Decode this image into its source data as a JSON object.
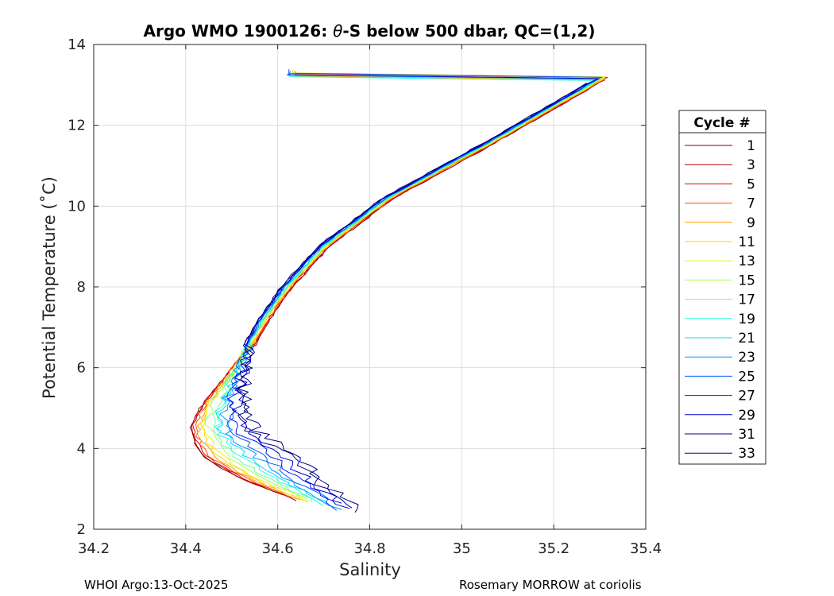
{
  "chart_data": {
    "type": "line",
    "title_prefix": "Argo WMO 1900126: ",
    "title_theta": "θ",
    "title_suffix": "-S below 500 dbar,  QC=(1,2)",
    "xlabel": "Salinity",
    "ylabel": "Potential Temperature (˚C)",
    "xlim": [
      34.2,
      35.4
    ],
    "ylim": [
      2,
      14
    ],
    "xticks": [
      "34.2",
      "34.4",
      "34.6",
      "34.8",
      "35",
      "35.2",
      "35.4"
    ],
    "yticks": [
      "2",
      "4",
      "6",
      "8",
      "10",
      "12",
      "14"
    ],
    "grid": true,
    "legend_title": "Cycle #",
    "legend_placement": "right",
    "legend": [
      "1",
      "3",
      "5",
      "7",
      "9",
      "11",
      "13",
      "15",
      "17",
      "19",
      "21",
      "23",
      "25",
      "27",
      "29",
      "31",
      "33"
    ],
    "legend_colors": [
      "#800000",
      "#b30000",
      "#e60000",
      "#ff4d00",
      "#ff9900",
      "#ffd500",
      "#e6f01a",
      "#a6ff59",
      "#66ff99",
      "#26ffd9",
      "#00d9ff",
      "#0099ff",
      "#0059ff",
      "#0019ff",
      "#0000d5",
      "#00008f",
      "#000080"
    ],
    "series_shape": {
      "profile_s": [
        35.31,
        35.05,
        34.84,
        34.7,
        34.62,
        34.57,
        34.54,
        34.52,
        34.5,
        34.485,
        34.48,
        34.485,
        34.51,
        34.56,
        34.63
      ],
      "profile_t": [
        13.2,
        11.5,
        10.2,
        9.0,
        8.0,
        7.2,
        6.6,
        6.0,
        5.6,
        5.1,
        4.6,
        4.2,
        3.8,
        3.3,
        2.7
      ],
      "profile_s_deep_early": [
        34.43,
        34.41,
        34.42,
        34.44,
        34.48,
        34.53,
        34.6,
        34.66,
        34.7
      ],
      "profile_t_deep_early": [
        5.0,
        4.5,
        4.1,
        3.8,
        3.5,
        3.2,
        2.9,
        2.6,
        2.45
      ],
      "profile_s_deep_late": [
        34.52,
        34.53,
        34.56,
        34.62,
        34.67,
        34.7,
        34.73,
        34.76
      ],
      "profile_t_deep_late": [
        5.9,
        5.0,
        4.4,
        4.0,
        3.6,
        3.2,
        2.9,
        2.65
      ]
    }
  },
  "footer": {
    "left": "WHOI Argo:13-Oct-2025",
    "right": "Rosemary MORROW at coriolis"
  }
}
